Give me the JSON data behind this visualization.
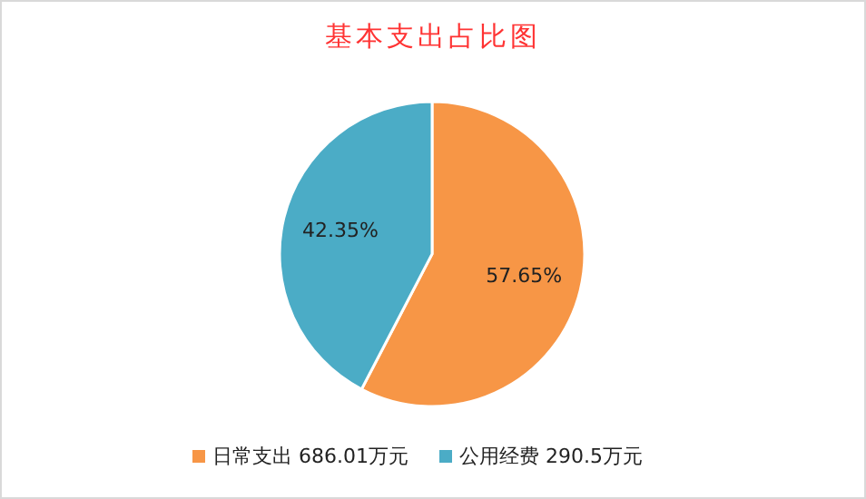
{
  "chart_data": {
    "type": "pie",
    "title": "基本支出占比图",
    "categories": [
      "日常支出 686.01万元",
      "公用经费 290.5万元"
    ],
    "values": [
      57.65,
      42.35
    ],
    "colors": [
      "#f79646",
      "#4bacc6"
    ],
    "value_labels": [
      "57.65%",
      "42.35%"
    ],
    "legend": "bottom"
  }
}
